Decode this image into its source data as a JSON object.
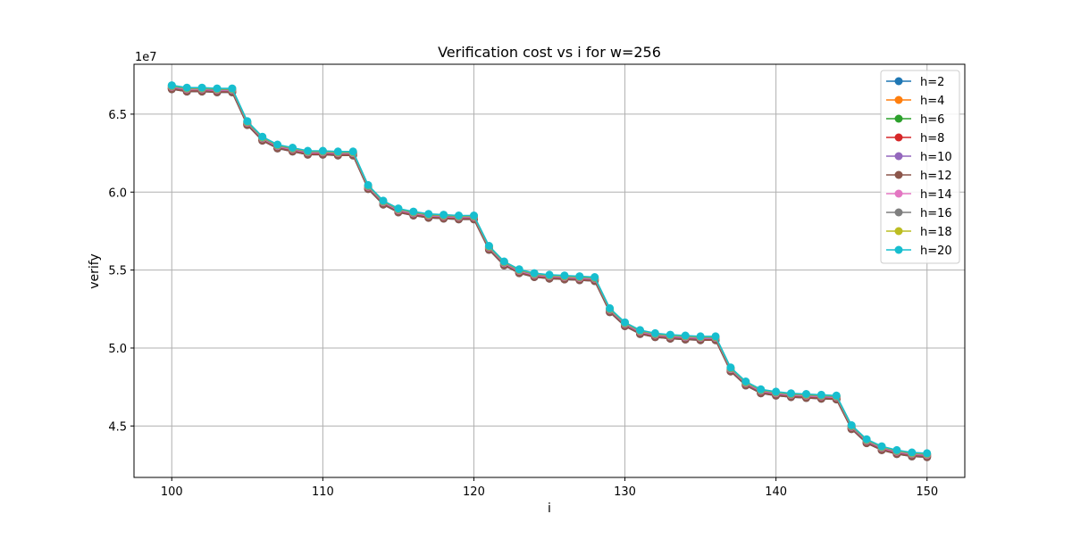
{
  "chart_data": {
    "type": "line",
    "title": "Verification cost vs i for w=256",
    "xlabel": "i",
    "ylabel": "verify",
    "y_offset_label": "1e7",
    "xlim": [
      97.5,
      152.5
    ],
    "ylim": [
      4.17,
      6.82
    ],
    "x_ticks": [
      100,
      110,
      120,
      130,
      140,
      150
    ],
    "x_tick_labels": [
      "100",
      "110",
      "120",
      "130",
      "140",
      "150"
    ],
    "y_ticks": [
      4.5,
      5.0,
      5.5,
      6.0,
      6.5
    ],
    "y_tick_labels": [
      "4.5",
      "5.0",
      "5.5",
      "6.0",
      "6.5"
    ],
    "grid": true,
    "legend_position": "top-right",
    "marker": "circle",
    "x": [
      100,
      101,
      102,
      103,
      104,
      105,
      106,
      107,
      108,
      109,
      110,
      111,
      112,
      113,
      114,
      115,
      116,
      117,
      118,
      119,
      120,
      121,
      122,
      123,
      124,
      125,
      126,
      127,
      128,
      129,
      130,
      131,
      132,
      133,
      134,
      135,
      136,
      137,
      138,
      139,
      140,
      141,
      142,
      143,
      144,
      145,
      146,
      147,
      148,
      149,
      150
    ],
    "base_values": [
      6.66,
      6.645,
      6.645,
      6.64,
      6.64,
      6.43,
      6.33,
      6.28,
      6.26,
      6.24,
      6.24,
      6.235,
      6.235,
      6.02,
      5.92,
      5.87,
      5.85,
      5.835,
      5.83,
      5.825,
      5.825,
      5.63,
      5.53,
      5.48,
      5.455,
      5.445,
      5.44,
      5.435,
      5.43,
      5.23,
      5.14,
      5.09,
      5.07,
      5.06,
      5.055,
      5.05,
      5.05,
      4.85,
      4.76,
      4.71,
      4.695,
      4.685,
      4.68,
      4.675,
      4.67,
      4.48,
      4.39,
      4.345,
      4.32,
      4.305,
      4.3
    ],
    "series": [
      {
        "name": "h=2",
        "color": "#1f77b4",
        "offset": 0.0
      },
      {
        "name": "h=4",
        "color": "#ff7f0e",
        "offset": 0.003
      },
      {
        "name": "h=6",
        "color": "#2ca02c",
        "offset": 0.006
      },
      {
        "name": "h=8",
        "color": "#d62728",
        "offset": 0.009
      },
      {
        "name": "h=10",
        "color": "#9467bd",
        "offset": 0.012
      },
      {
        "name": "h=12",
        "color": "#8c564b",
        "offset": 0.0
      },
      {
        "name": "h=14",
        "color": "#e377c2",
        "offset": 0.015
      },
      {
        "name": "h=16",
        "color": "#7f7f7f",
        "offset": 0.018
      },
      {
        "name": "h=18",
        "color": "#bcbd22",
        "offset": 0.022
      },
      {
        "name": "h=20",
        "color": "#17becf",
        "offset": 0.025
      }
    ]
  }
}
